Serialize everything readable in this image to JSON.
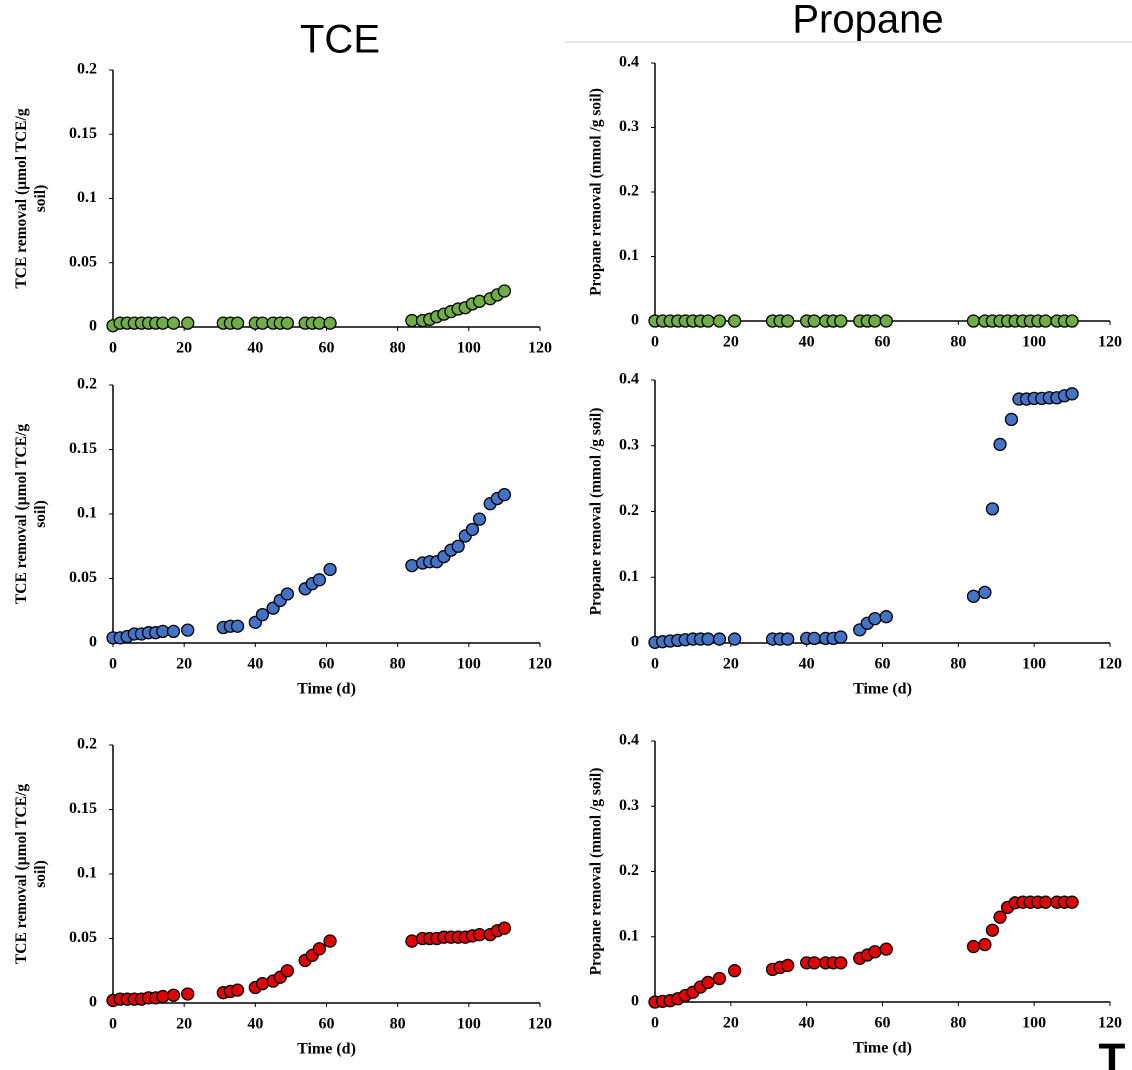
{
  "headings": [
    "TCE",
    "Propane"
  ],
  "corner_text": "T",
  "chart_data": [
    {
      "type": "scatter",
      "ylabel_lines": [
        "TCE removal (µmol TCE/g",
        "soil)"
      ],
      "color": "#70ad47",
      "x": [
        0,
        2,
        4,
        6,
        8,
        10,
        12,
        14,
        17,
        21,
        31,
        33,
        35,
        40,
        42,
        45,
        47,
        49,
        54,
        56,
        58,
        61,
        84,
        87,
        89,
        91,
        93,
        95,
        97,
        99,
        101,
        103,
        106,
        108,
        110
      ],
      "values": [
        0.001,
        0.003,
        0.003,
        0.003,
        0.003,
        0.003,
        0.003,
        0.003,
        0.003,
        0.003,
        0.003,
        0.003,
        0.003,
        0.003,
        0.003,
        0.003,
        0.003,
        0.003,
        0.003,
        0.003,
        0.003,
        0.003,
        0.005,
        0.005,
        0.006,
        0.008,
        0.01,
        0.012,
        0.014,
        0.015,
        0.018,
        0.02,
        0.022,
        0.025,
        0.028
      ],
      "xlim": [
        0,
        120
      ],
      "xticks": [
        0,
        20,
        40,
        60,
        80,
        100,
        120
      ],
      "ylim": [
        0,
        0.2
      ],
      "yticks": [
        0,
        0.05,
        0.1,
        0.15,
        0.2
      ]
    },
    {
      "type": "scatter",
      "ylabel_lines": [
        "Propane removal (mmol /g soil)"
      ],
      "color": "#70ad47",
      "x": [
        0,
        2,
        4,
        6,
        8,
        10,
        12,
        14,
        17,
        21,
        31,
        33,
        35,
        40,
        42,
        45,
        47,
        49,
        54,
        56,
        58,
        61,
        84,
        87,
        89,
        91,
        93,
        95,
        97,
        99,
        101,
        103,
        106,
        108,
        110
      ],
      "values": [
        0,
        0,
        0,
        0,
        0,
        0,
        0,
        0,
        0,
        0,
        0,
        0,
        0,
        0,
        0,
        0,
        0,
        0,
        0,
        0,
        0,
        0,
        0,
        0,
        0,
        0,
        0,
        0,
        0,
        0,
        0,
        0,
        0,
        0,
        0
      ],
      "xlim": [
        0,
        120
      ],
      "xticks": [
        0,
        20,
        40,
        60,
        80,
        100,
        120
      ],
      "ylim": [
        0,
        0.4
      ],
      "yticks": [
        0,
        0.1,
        0.2,
        0.3,
        0.4
      ]
    },
    {
      "type": "scatter",
      "ylabel_lines": [
        "TCE removal (µmol TCE/g",
        "soil)"
      ],
      "xlabel": "Time (d)",
      "color": "#4472c4",
      "x": [
        0,
        2,
        4,
        6,
        8,
        10,
        12,
        14,
        17,
        21,
        31,
        33,
        35,
        40,
        42,
        45,
        47,
        49,
        54,
        56,
        58,
        61,
        84,
        87,
        89,
        91,
        93,
        95,
        97,
        99,
        101,
        103,
        106,
        108,
        110
      ],
      "values": [
        0.004,
        0.004,
        0.005,
        0.007,
        0.007,
        0.008,
        0.008,
        0.009,
        0.009,
        0.01,
        0.012,
        0.013,
        0.013,
        0.016,
        0.022,
        0.027,
        0.033,
        0.038,
        0.042,
        0.046,
        0.049,
        0.057,
        0.06,
        0.062,
        0.063,
        0.063,
        0.067,
        0.072,
        0.075,
        0.083,
        0.088,
        0.096,
        0.108,
        0.112,
        0.115
      ],
      "xlim": [
        0,
        120
      ],
      "xticks": [
        0,
        20,
        40,
        60,
        80,
        100,
        120
      ],
      "ylim": [
        0,
        0.2
      ],
      "yticks": [
        0,
        0.05,
        0.1,
        0.15,
        0.2
      ]
    },
    {
      "type": "scatter",
      "ylabel_lines": [
        "Propane removal (mmol /g soil)"
      ],
      "xlabel": "Time (d)",
      "color": "#4472c4",
      "x": [
        0,
        2,
        4,
        6,
        8,
        10,
        12,
        14,
        17,
        21,
        31,
        33,
        35,
        40,
        42,
        45,
        47,
        49,
        54,
        56,
        58,
        61,
        84,
        87,
        89,
        91,
        94,
        96,
        98,
        100,
        102,
        104,
        106,
        108,
        110
      ],
      "values": [
        0.001,
        0.002,
        0.003,
        0.004,
        0.005,
        0.006,
        0.006,
        0.006,
        0.006,
        0.006,
        0.006,
        0.006,
        0.006,
        0.007,
        0.007,
        0.007,
        0.007,
        0.009,
        0.02,
        0.03,
        0.037,
        0.04,
        0.071,
        0.077,
        0.204,
        0.302,
        0.34,
        0.371,
        0.371,
        0.372,
        0.372,
        0.373,
        0.373,
        0.376,
        0.379
      ],
      "xlim": [
        0,
        120
      ],
      "xticks": [
        0,
        20,
        40,
        60,
        80,
        100,
        120
      ],
      "ylim": [
        0,
        0.4
      ],
      "yticks": [
        0,
        0.1,
        0.2,
        0.3,
        0.4
      ]
    },
    {
      "type": "scatter",
      "ylabel_lines": [
        "TCE removal (µmol TCE/g",
        "soil)"
      ],
      "xlabel": "Time (d)",
      "color": "#e00000",
      "x": [
        0,
        2,
        4,
        6,
        8,
        10,
        12,
        14,
        17,
        21,
        31,
        33,
        35,
        40,
        42,
        45,
        47,
        49,
        54,
        56,
        58,
        61,
        84,
        87,
        89,
        91,
        93,
        95,
        97,
        99,
        101,
        103,
        106,
        108,
        110
      ],
      "values": [
        0.002,
        0.003,
        0.003,
        0.003,
        0.003,
        0.004,
        0.004,
        0.005,
        0.006,
        0.007,
        0.008,
        0.009,
        0.01,
        0.012,
        0.015,
        0.017,
        0.02,
        0.025,
        0.033,
        0.037,
        0.042,
        0.048,
        0.048,
        0.05,
        0.05,
        0.05,
        0.051,
        0.051,
        0.051,
        0.051,
        0.052,
        0.053,
        0.053,
        0.056,
        0.058
      ],
      "xlim": [
        0,
        120
      ],
      "xticks": [
        0,
        20,
        40,
        60,
        80,
        100,
        120
      ],
      "ylim": [
        0,
        0.2
      ],
      "yticks": [
        0,
        0.05,
        0.1,
        0.15,
        0.2
      ]
    },
    {
      "type": "scatter",
      "ylabel_lines": [
        "Propane removal (mmol /g soil)"
      ],
      "xlabel": "Time (d)",
      "color": "#e00000",
      "x": [
        0,
        2,
        4,
        6,
        8,
        10,
        12,
        14,
        17,
        21,
        31,
        33,
        35,
        40,
        42,
        45,
        47,
        49,
        54,
        56,
        58,
        61,
        84,
        87,
        89,
        91,
        93,
        95,
        97,
        99,
        101,
        103,
        106,
        108,
        110
      ],
      "values": [
        0,
        0.001,
        0.002,
        0.005,
        0.01,
        0.015,
        0.023,
        0.03,
        0.036,
        0.048,
        0.05,
        0.053,
        0.056,
        0.06,
        0.06,
        0.06,
        0.06,
        0.06,
        0.067,
        0.072,
        0.077,
        0.081,
        0.085,
        0.088,
        0.11,
        0.13,
        0.145,
        0.152,
        0.153,
        0.153,
        0.153,
        0.153,
        0.153,
        0.153,
        0.153
      ],
      "xlim": [
        0,
        120
      ],
      "xticks": [
        0,
        20,
        40,
        60,
        80,
        100,
        120
      ],
      "ylim": [
        0,
        0.4
      ],
      "yticks": [
        0,
        0.1,
        0.2,
        0.3,
        0.4
      ]
    }
  ]
}
